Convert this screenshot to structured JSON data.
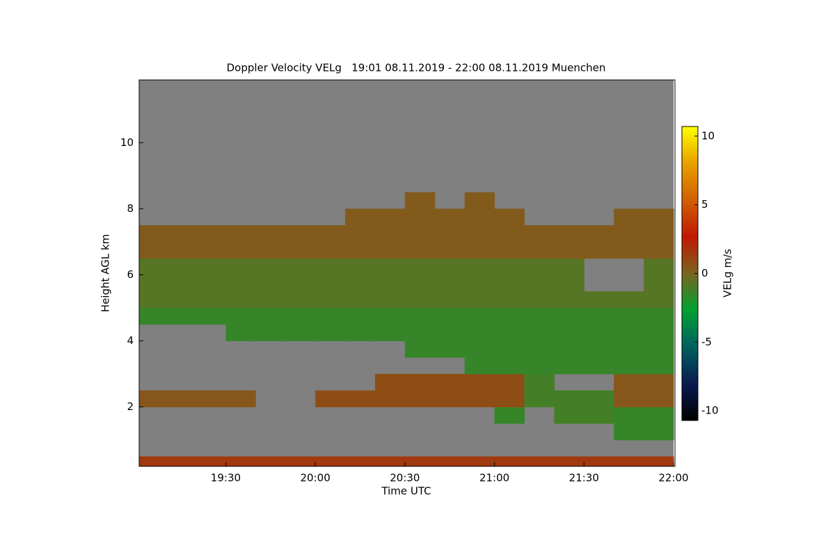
{
  "chart_data": {
    "type": "heatmap",
    "title": "Doppler Velocity VELg   19:01 08.11.2019 - 22:00 08.11.2019 Muenchen",
    "x_label": "Time UTC",
    "y_label": "Height AGL km",
    "colorbar_label": "VELg m/s",
    "background": "#808080",
    "x_bins": [
      "19:01",
      "19:10",
      "19:20",
      "19:30",
      "19:40",
      "19:50",
      "20:00",
      "20:10",
      "20:20",
      "20:30",
      "20:40",
      "20:50",
      "21:00",
      "21:10",
      "21:20",
      "21:30",
      "21:40",
      "21:50",
      "22:00"
    ],
    "y_bins": [
      0.2,
      0.5,
      1.0,
      1.5,
      2.0,
      2.5,
      3.0,
      3.5,
      4.0,
      4.5,
      5.0,
      5.5,
      6.0,
      6.5,
      7.0,
      7.5,
      8.0,
      8.5,
      9.0,
      9.5,
      10.0,
      10.5,
      11.0,
      11.5,
      11.9
    ],
    "z": [
      [
        1.5,
        1.5,
        1.5,
        1.5,
        1.5,
        1.5,
        1.5,
        1.5,
        1.5,
        1.5,
        1.5,
        1.5,
        1.5,
        1.5,
        1.5,
        1.5,
        1.5,
        1.5
      ],
      [
        null,
        null,
        null,
        null,
        null,
        null,
        null,
        null,
        null,
        null,
        null,
        null,
        null,
        null,
        null,
        null,
        null,
        null
      ],
      [
        null,
        null,
        null,
        null,
        null,
        null,
        null,
        null,
        null,
        null,
        null,
        null,
        null,
        null,
        null,
        null,
        -1.5,
        -1.5
      ],
      [
        null,
        null,
        null,
        null,
        null,
        null,
        null,
        null,
        null,
        null,
        null,
        null,
        -1.5,
        null,
        -1.2,
        -1.2,
        -1.5,
        -1.5
      ],
      [
        0.5,
        0.5,
        0.5,
        0.5,
        null,
        null,
        0.8,
        0.8,
        0.8,
        0.8,
        0.8,
        0.8,
        0.8,
        -1.2,
        -1.2,
        -1.2,
        0.5,
        0.5
      ],
      [
        null,
        null,
        null,
        null,
        null,
        null,
        null,
        null,
        0.8,
        0.8,
        0.8,
        0.8,
        0.8,
        -1.2,
        null,
        null,
        0.5,
        0.5
      ],
      [
        null,
        null,
        null,
        null,
        null,
        null,
        null,
        null,
        null,
        null,
        null,
        -1.5,
        -1.5,
        -1.5,
        -1.5,
        -1.5,
        -1.5,
        -1.5
      ],
      [
        null,
        null,
        null,
        null,
        null,
        null,
        null,
        null,
        null,
        -1.5,
        -1.5,
        -1.5,
        -1.5,
        -1.5,
        -1.5,
        -1.5,
        -1.5,
        -1.5
      ],
      [
        null,
        null,
        null,
        -1.5,
        -1.5,
        -1.5,
        -1.5,
        -1.5,
        -1.5,
        -1.5,
        -1.5,
        -1.5,
        -1.5,
        -1.5,
        -1.5,
        -1.5,
        -1.5,
        -1.5
      ],
      [
        -1.5,
        -1.5,
        -1.5,
        -1.5,
        -1.5,
        -1.5,
        -1.5,
        -1.5,
        -1.5,
        -1.5,
        -1.5,
        -1.5,
        -1.5,
        -1.5,
        -1.5,
        -1.5,
        -1.5,
        -1.5
      ],
      [
        -0.8,
        -0.8,
        -0.8,
        -0.8,
        -0.8,
        -0.8,
        -0.8,
        -0.8,
        -0.8,
        -0.8,
        -0.8,
        -0.8,
        -0.8,
        -0.8,
        -0.8,
        -0.8,
        -0.8,
        -0.8
      ],
      [
        -0.8,
        -0.8,
        -0.8,
        -0.8,
        -0.8,
        -0.8,
        -0.8,
        -0.8,
        -0.8,
        -0.8,
        -0.8,
        -0.8,
        -0.8,
        -0.8,
        -0.8,
        null,
        null,
        -0.8
      ],
      [
        -0.8,
        -0.8,
        -0.8,
        -0.8,
        -0.8,
        -0.8,
        -0.8,
        -0.8,
        -0.8,
        -0.8,
        -0.8,
        -0.8,
        -0.8,
        -0.8,
        -0.8,
        null,
        null,
        -0.8
      ],
      [
        0.3,
        0.3,
        0.3,
        0.3,
        0.3,
        0.3,
        0.3,
        0.3,
        0.3,
        0.3,
        0.3,
        0.3,
        0.3,
        0.3,
        0.3,
        0.3,
        0.3,
        0.3
      ],
      [
        0.3,
        0.3,
        0.3,
        0.3,
        0.3,
        0.3,
        0.3,
        0.3,
        0.3,
        0.3,
        0.3,
        0.3,
        0.3,
        0.3,
        0.3,
        0.3,
        0.3,
        0.3
      ],
      [
        null,
        null,
        null,
        null,
        null,
        null,
        null,
        0.3,
        0.3,
        0.3,
        0.3,
        0.3,
        0.3,
        null,
        null,
        null,
        0.3,
        0.3
      ],
      [
        null,
        null,
        null,
        null,
        null,
        null,
        null,
        null,
        null,
        0.3,
        null,
        0.3,
        null,
        null,
        null,
        null,
        null,
        null
      ],
      [
        null,
        null,
        null,
        null,
        null,
        null,
        null,
        null,
        null,
        null,
        null,
        null,
        null,
        null,
        null,
        null,
        null,
        null
      ],
      [
        null,
        null,
        null,
        null,
        null,
        null,
        null,
        null,
        null,
        null,
        null,
        null,
        null,
        null,
        null,
        null,
        null,
        null
      ],
      [
        null,
        null,
        null,
        null,
        null,
        null,
        null,
        null,
        null,
        null,
        null,
        null,
        null,
        null,
        null,
        null,
        null,
        null
      ],
      [
        null,
        null,
        null,
        null,
        null,
        null,
        null,
        null,
        null,
        null,
        null,
        null,
        null,
        null,
        null,
        null,
        null,
        null
      ],
      [
        null,
        null,
        null,
        null,
        null,
        null,
        null,
        null,
        null,
        null,
        null,
        null,
        null,
        null,
        null,
        null,
        null,
        null
      ],
      [
        null,
        null,
        null,
        null,
        null,
        null,
        null,
        null,
        null,
        null,
        null,
        null,
        null,
        null,
        null,
        null,
        null,
        null
      ],
      [
        null,
        null,
        null,
        null,
        null,
        null,
        null,
        null,
        null,
        null,
        null,
        null,
        null,
        null,
        null,
        null,
        null,
        null
      ]
    ],
    "xlim": [
      "19:01",
      "22:00"
    ],
    "xticks": [
      "19:30",
      "20:00",
      "20:30",
      "21:00",
      "21:30",
      "22:00"
    ],
    "ylim": [
      0.2,
      11.9
    ],
    "yticks": [
      2,
      4,
      6,
      8,
      10
    ],
    "clim": [
      -10.7,
      10.7
    ],
    "cticks": [
      -10,
      -5,
      0,
      5,
      10
    ],
    "colormap": [
      "#000000",
      "#0a1a50",
      "#006060",
      "#00a030",
      "#7a6420",
      "#c01800",
      "#d06000",
      "#e8a000",
      "#ffff00"
    ]
  }
}
